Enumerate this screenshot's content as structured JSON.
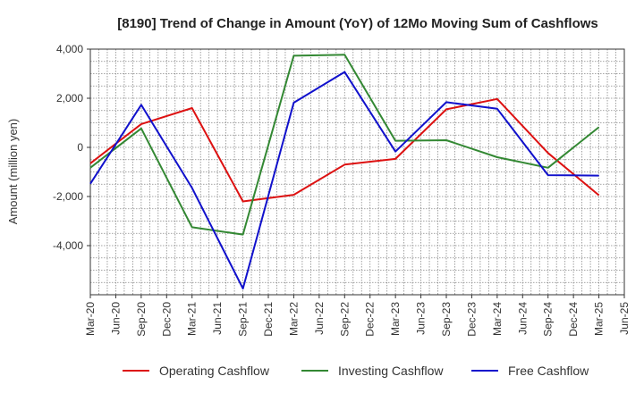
{
  "chart_data": {
    "type": "line",
    "title": "[8190]  Trend of Change in Amount (YoY) of 12Mo Moving Sum of Cashflows",
    "xlabel": "",
    "ylabel": "Amount (million yen)",
    "ylim": [
      -6000,
      4000
    ],
    "yticks": [
      -4000,
      -2000,
      0,
      2000,
      4000
    ],
    "ytick_labels": [
      "-4,000",
      "-2,000",
      "0",
      "2,000",
      "4,000"
    ],
    "x": [
      "Mar-20",
      "Jun-20",
      "Sep-20",
      "Dec-20",
      "Mar-21",
      "Jun-21",
      "Sep-21",
      "Dec-21",
      "Mar-22",
      "Jun-22",
      "Sep-22",
      "Dec-22",
      "Mar-23",
      "Jun-23",
      "Sep-23",
      "Dec-23",
      "Mar-24",
      "Jun-24",
      "Sep-24",
      "Dec-24",
      "Mar-25",
      "Jun-25"
    ],
    "grid": true,
    "legend_position": "bottom",
    "series": [
      {
        "name": "Operating Cashflow",
        "color": "#dd1111",
        "values": [
          -650,
          null,
          950,
          null,
          1600,
          null,
          -2200,
          null,
          -1930,
          null,
          -700,
          null,
          -470,
          null,
          1550,
          null,
          1970,
          null,
          -230,
          null,
          -1950,
          null
        ]
      },
      {
        "name": "Investing Cashflow",
        "color": "#338833",
        "values": [
          -830,
          null,
          770,
          null,
          -3250,
          null,
          -3550,
          null,
          3730,
          null,
          3770,
          null,
          270,
          null,
          290,
          null,
          -400,
          null,
          -830,
          null,
          820,
          null
        ]
      },
      {
        "name": "Free Cashflow",
        "color": "#1111cc",
        "values": [
          -1480,
          null,
          1730,
          null,
          -1650,
          null,
          -5750,
          null,
          1820,
          null,
          3070,
          null,
          -170,
          null,
          1840,
          null,
          1570,
          null,
          -1130,
          null,
          -1150,
          null
        ]
      }
    ]
  }
}
